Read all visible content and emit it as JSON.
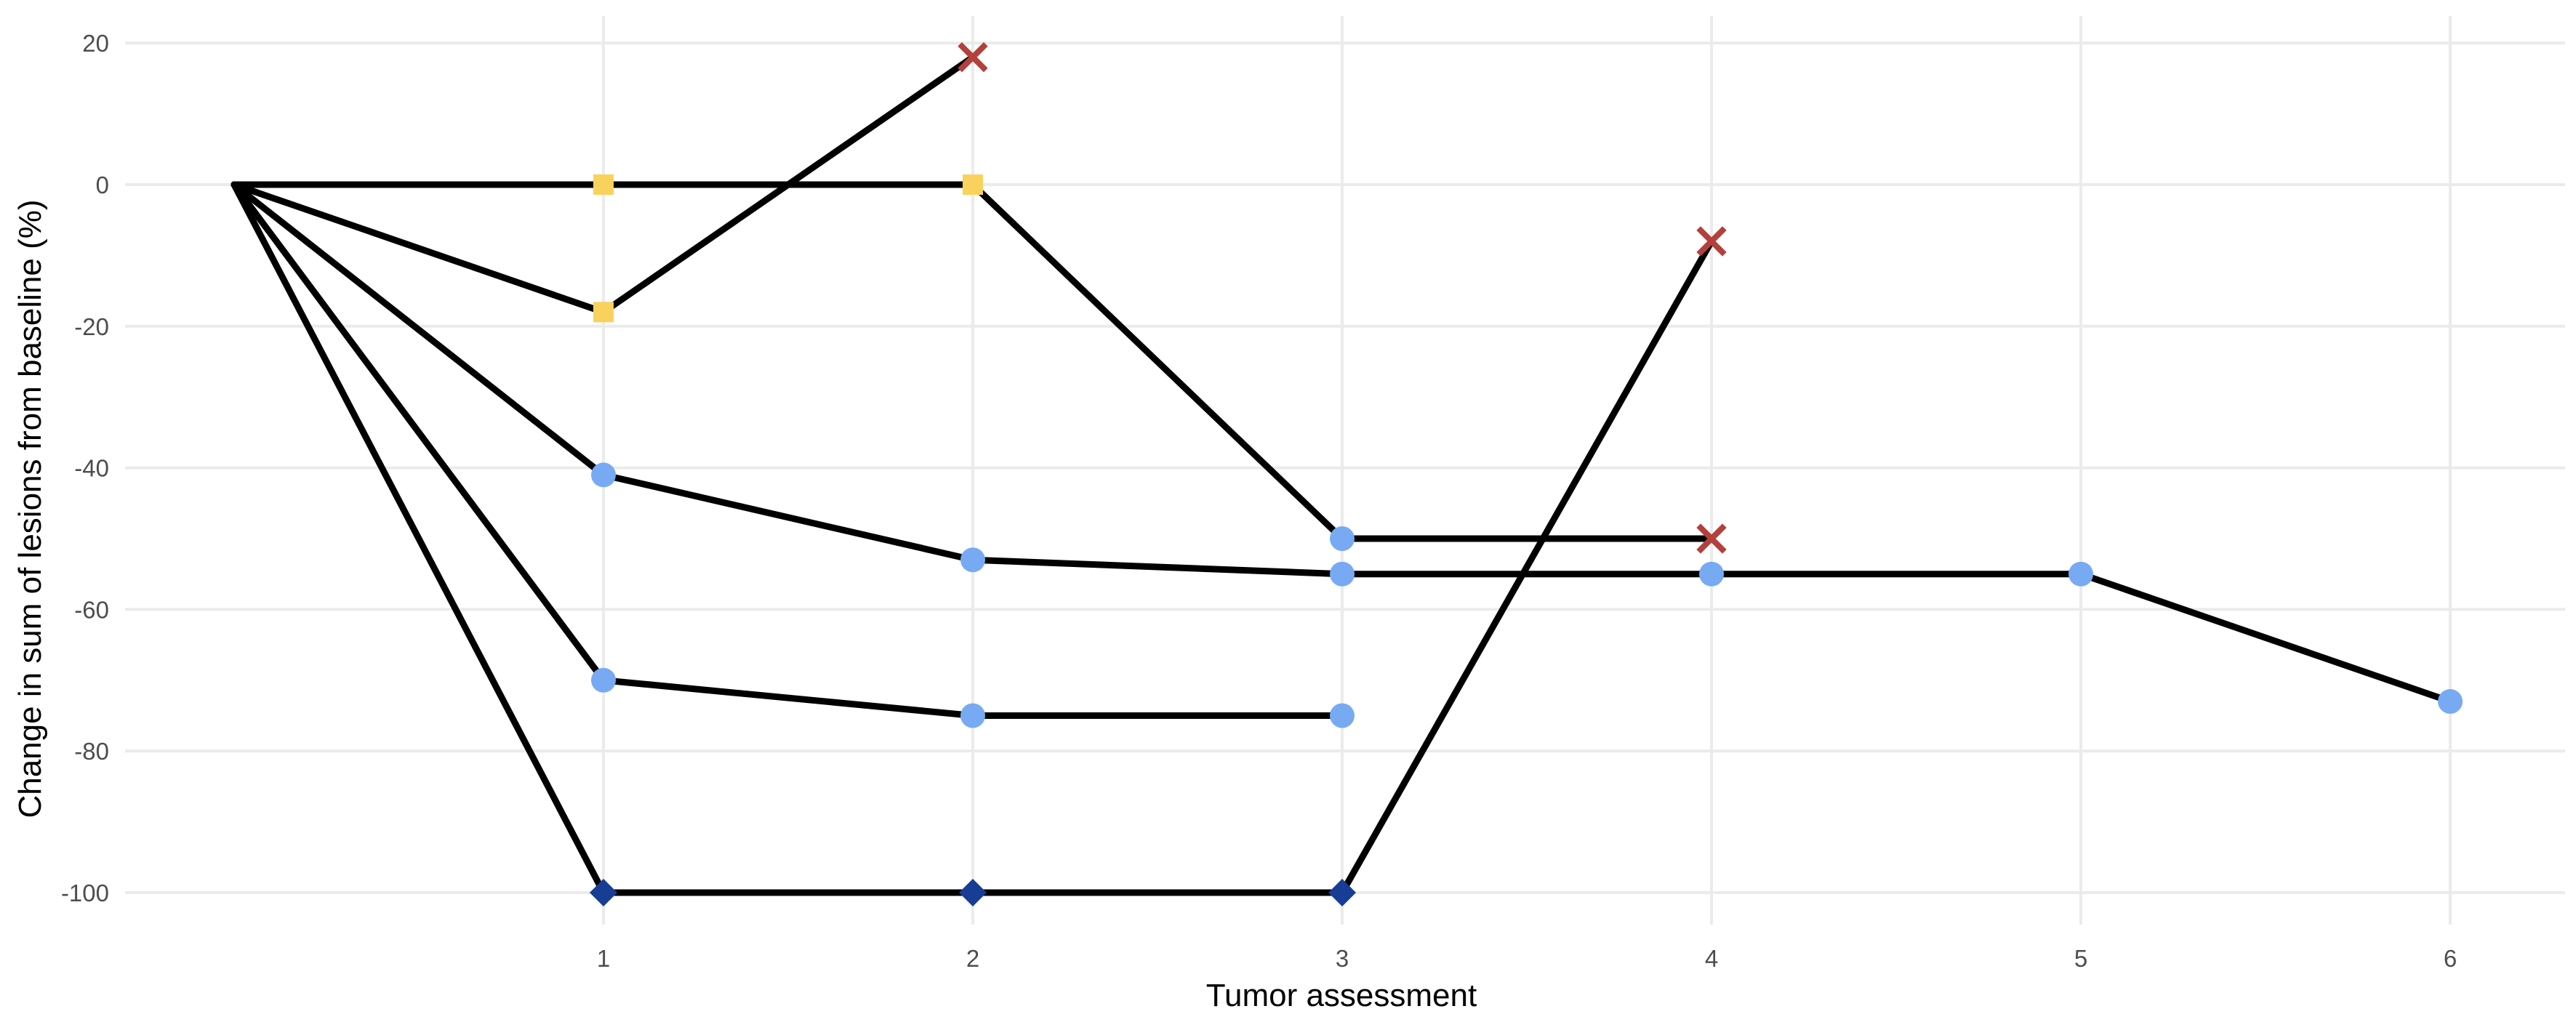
{
  "chart_data": {
    "type": "line",
    "title": "",
    "xlabel": "Tumor assessment",
    "ylabel": "Change in sum of lesions from baseline (%)",
    "x_ticks": [
      1,
      2,
      3,
      4,
      5,
      6
    ],
    "y_ticks": [
      20,
      0,
      -20,
      -40,
      -60,
      -80,
      -100
    ],
    "xlim": [
      -0.3,
      6.3
    ],
    "ylim": [
      -104,
      24
    ],
    "grid": true,
    "legend": "none",
    "marker_colors": {
      "square": "#f9d15d",
      "circle": "#78aaf3",
      "diamond": "#173d95",
      "cross": "#b3403c"
    },
    "series": [
      {
        "points": [
          {
            "x": 0,
            "y": 0
          },
          {
            "x": 1,
            "y": 0,
            "marker": "square"
          },
          {
            "x": 2,
            "y": 0,
            "marker": "square"
          },
          {
            "x": 3,
            "y": -50,
            "marker": "circle"
          },
          {
            "x": 4,
            "y": -50,
            "marker": "cross"
          }
        ]
      },
      {
        "points": [
          {
            "x": 0,
            "y": 0
          },
          {
            "x": 1,
            "y": -18,
            "marker": "square"
          },
          {
            "x": 2,
            "y": 18,
            "marker": "cross"
          }
        ]
      },
      {
        "points": [
          {
            "x": 0,
            "y": 0
          },
          {
            "x": 1,
            "y": -41,
            "marker": "circle"
          },
          {
            "x": 2,
            "y": -53,
            "marker": "circle"
          },
          {
            "x": 3,
            "y": -55,
            "marker": "circle"
          },
          {
            "x": 4,
            "y": -55,
            "marker": "circle"
          },
          {
            "x": 5,
            "y": -55,
            "marker": "circle"
          },
          {
            "x": 6,
            "y": -73,
            "marker": "circle"
          }
        ]
      },
      {
        "points": [
          {
            "x": 0,
            "y": 0
          },
          {
            "x": 1,
            "y": -70,
            "marker": "circle"
          },
          {
            "x": 2,
            "y": -75,
            "marker": "circle"
          },
          {
            "x": 3,
            "y": -75,
            "marker": "circle"
          }
        ]
      },
      {
        "points": [
          {
            "x": 0,
            "y": 0
          },
          {
            "x": 1,
            "y": -100,
            "marker": "diamond"
          },
          {
            "x": 2,
            "y": -100,
            "marker": "diamond"
          },
          {
            "x": 3,
            "y": -100,
            "marker": "diamond"
          },
          {
            "x": 4,
            "y": -8,
            "marker": "cross"
          }
        ]
      }
    ]
  }
}
